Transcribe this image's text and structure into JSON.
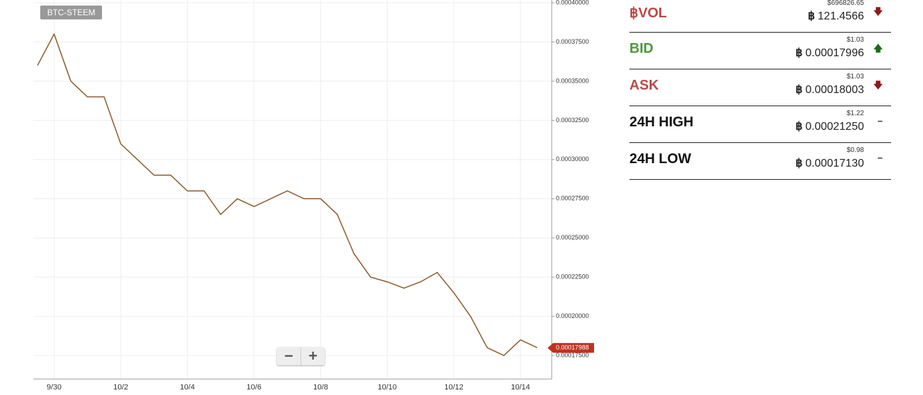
{
  "badge": "BTC-STEEM",
  "chart_data": {
    "type": "line",
    "categories": [
      null,
      "9/30",
      null,
      null,
      null,
      "10/2",
      null,
      null,
      null,
      "10/4",
      null,
      null,
      null,
      "10/6",
      null,
      null,
      null,
      "10/8",
      null,
      null,
      null,
      "10/10",
      null,
      null,
      null,
      "10/12",
      null,
      null,
      null,
      "10/14",
      null
    ],
    "values": [
      0.00036,
      0.00038,
      0.00035,
      0.00034,
      0.00034,
      0.00031,
      0.0003,
      0.00029,
      0.00029,
      0.00028,
      0.00028,
      0.000265,
      0.000275,
      0.00027,
      0.000275,
      0.00028,
      0.000275,
      0.000275,
      0.000265,
      0.00024,
      0.000225,
      0.000222,
      0.000218,
      0.000222,
      0.000228,
      0.000215,
      0.0002,
      0.00018,
      0.000175,
      0.000185,
      0.00018
    ],
    "color": "#8a5a2a",
    "ylim": [
      0.00016,
      0.0004
    ],
    "yticks": [
      {
        "value": 0.000175,
        "label": "0.00017500"
      },
      {
        "value": 0.0002,
        "label": "0.00020000"
      },
      {
        "value": 0.000225,
        "label": "0.00022500"
      },
      {
        "value": 0.00025,
        "label": "0.00025000"
      },
      {
        "value": 0.000275,
        "label": "0.00027500"
      },
      {
        "value": 0.0003,
        "label": "0.00030000"
      },
      {
        "value": 0.000325,
        "label": "0.00032500"
      },
      {
        "value": 0.00035,
        "label": "0.00035000"
      },
      {
        "value": 0.000375,
        "label": "0.00037500"
      },
      {
        "value": 0.0004,
        "label": "0.00040000"
      }
    ],
    "grid": true,
    "last_price": {
      "value": 0.00017988,
      "label": "0.00017988"
    }
  },
  "btc_symbol": "฿",
  "stats": [
    {
      "label": "฿VOL",
      "usd": "$696826.65",
      "btc": "121.4566",
      "color": "#b94a48"
    },
    {
      "label": "BID",
      "usd": "$1.03",
      "btc": "0.00017996",
      "color": "#4a9a3a"
    },
    {
      "label": "ASK",
      "usd": "$1.03",
      "btc": "0.00018003",
      "color": "#b94a48"
    },
    {
      "label": "24H HIGH",
      "usd": "$1.22",
      "btc": "0.00021250",
      "color": "#111111"
    },
    {
      "label": "24H LOW",
      "usd": "$0.98",
      "btc": "0.00017130",
      "color": "#111111"
    }
  ]
}
